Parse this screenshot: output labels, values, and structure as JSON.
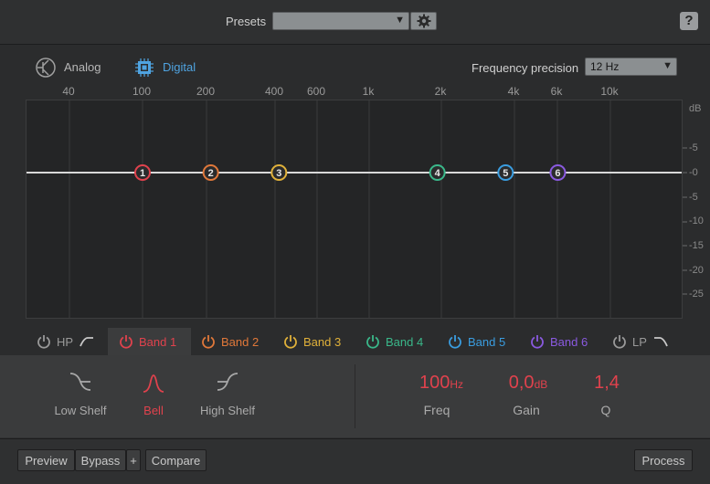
{
  "header": {
    "presets_label": "Presets",
    "presets_value": "",
    "help_label": "?"
  },
  "mode": {
    "analog_label": "Analog",
    "digital_label": "Digital",
    "selected": "Digital",
    "frequency_precision_label": "Frequency precision",
    "frequency_precision_value": "12 Hz"
  },
  "graph": {
    "freq_labels": [
      "40",
      "100",
      "200",
      "400",
      "600",
      "1k",
      "2k",
      "4k",
      "6k",
      "10k"
    ],
    "db_labels": [
      "dB",
      "5",
      "0",
      "5",
      "10",
      "15",
      "20",
      "25"
    ],
    "nodes": [
      {
        "label": "1",
        "freq_hz": 100,
        "gain_db": 0,
        "color": "#e0424d"
      },
      {
        "label": "2",
        "freq_hz": 200,
        "gain_db": 0,
        "color": "#e0783a"
      },
      {
        "label": "3",
        "freq_hz": 400,
        "gain_db": 0,
        "color": "#e0b13a"
      },
      {
        "label": "4",
        "freq_hz": 2000,
        "gain_db": 0,
        "color": "#3ab88a"
      },
      {
        "label": "5",
        "freq_hz": 4000,
        "gain_db": 0,
        "color": "#3a9de0"
      },
      {
        "label": "6",
        "freq_hz": 6800,
        "gain_db": 0,
        "color": "#8a5ae0"
      }
    ]
  },
  "tabs": [
    {
      "label": "HP",
      "color": "#9a9a9a",
      "selected": false
    },
    {
      "label": "Band 1",
      "color": "#e0424d",
      "selected": true
    },
    {
      "label": "Band 2",
      "color": "#e0783a",
      "selected": false
    },
    {
      "label": "Band 3",
      "color": "#e0b13a",
      "selected": false
    },
    {
      "label": "Band 4",
      "color": "#3ab88a",
      "selected": false
    },
    {
      "label": "Band 5",
      "color": "#3a9de0",
      "selected": false
    },
    {
      "label": "Band 6",
      "color": "#8a5ae0",
      "selected": false
    },
    {
      "label": "LP",
      "color": "#9a9a9a",
      "selected": false
    }
  ],
  "shapes": {
    "low_shelf": "Low Shelf",
    "bell": "Bell",
    "high_shelf": "High Shelf",
    "selected": "Bell"
  },
  "params": {
    "freq_value": "100",
    "freq_unit": "Hz",
    "freq_label": "Freq",
    "gain_value": "0,0",
    "gain_unit": "dB",
    "gain_label": "Gain",
    "q_value": "1,4",
    "q_label": "Q"
  },
  "footer": {
    "preview": "Preview",
    "bypass": "Bypass",
    "plus": "+",
    "compare": "Compare",
    "process": "Process"
  }
}
